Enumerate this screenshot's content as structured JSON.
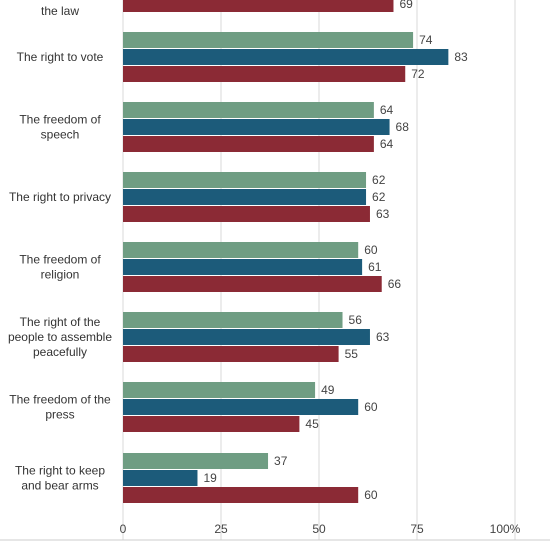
{
  "chart_data": {
    "type": "bar",
    "orientation": "horizontal",
    "categories": [
      "the law",
      "The right to vote",
      "The freedom of speech",
      "The right to privacy",
      "The freedom of religion",
      "The right of the people to assemble peacefully",
      "The freedom of the press",
      "The right to keep and bear arms"
    ],
    "category_lines": [
      [
        "the law"
      ],
      [
        "The right to vote"
      ],
      [
        "The freedom of",
        "speech"
      ],
      [
        "The right to privacy"
      ],
      [
        "The freedom of",
        "religion"
      ],
      [
        "The right of the",
        "people to assemble",
        "peacefully"
      ],
      [
        "The freedom of the",
        "press"
      ],
      [
        "The right to keep",
        "and bear arms"
      ]
    ],
    "series": [
      {
        "values": [
          null,
          74,
          64,
          62,
          60,
          56,
          49,
          37
        ],
        "color": "#6f9d83"
      },
      {
        "values": [
          null,
          83,
          68,
          62,
          61,
          63,
          60,
          19
        ],
        "color": "#1c5b7a"
      },
      {
        "values": [
          69,
          72,
          64,
          63,
          66,
          55,
          45,
          60
        ],
        "color": "#8b2a35"
      }
    ],
    "xlim": [
      0,
      100
    ],
    "xticks": [
      {
        "value": 0,
        "label": "0"
      },
      {
        "value": 25,
        "label": "25"
      },
      {
        "value": 50,
        "label": "50"
      },
      {
        "value": 75,
        "label": "75"
      },
      {
        "value": 100,
        "label": "100"
      }
    ],
    "unit_suffix": "%",
    "grid": true,
    "legend": "none"
  }
}
